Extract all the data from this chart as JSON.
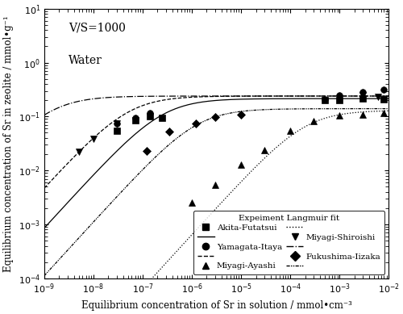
{
  "annotation_line1": "V/S=1000",
  "annotation_line2": "Water",
  "xlabel": "Equilibrium concentration of Sr in solution / mmol•cm⁻³",
  "ylabel": "Equilibrium concentration of Sr in zeolite / mmol•g⁻¹",
  "xlim": [
    1e-09,
    0.01
  ],
  "ylim": [
    0.0001,
    10
  ],
  "langmuir_params": [
    {
      "name": "Akita-Futatsui",
      "marker": "s",
      "ls": "-",
      "qmax": 0.215,
      "K": 4000000.0
    },
    {
      "name": "Yamagata-Itaya",
      "marker": "o",
      "ls": "--",
      "qmax": 0.24,
      "K": 20000000.0
    },
    {
      "name": "Miyagi-Ayashi",
      "marker": "^",
      "ls": ":",
      "qmax": 0.13,
      "K": 5000.0
    },
    {
      "name": "Miyagi-Shiroishi",
      "marker": "v",
      "ls": "-.",
      "qmax": 0.24,
      "K": 800000000.0
    },
    {
      "name": "Fukushima-Iizaka",
      "marker": "D",
      "ls": "dashdotdot",
      "qmax": 0.14,
      "K": 800000.0
    }
  ],
  "exp_data": [
    {
      "x": [
        3e-08,
        7e-08,
        1.4e-07,
        2.5e-07,
        0.0005,
        0.001,
        0.003,
        0.008
      ],
      "y": [
        0.055,
        0.085,
        0.1,
        0.095,
        0.2,
        0.2,
        0.22,
        0.21
      ]
    },
    {
      "x": [
        3e-08,
        7e-08,
        1.4e-07,
        0.0005,
        0.001,
        0.003,
        0.008
      ],
      "y": [
        0.075,
        0.095,
        0.115,
        0.21,
        0.245,
        0.285,
        0.32
      ]
    },
    {
      "x": [
        1e-06,
        3e-06,
        1e-05,
        3e-05,
        0.0001,
        0.0003,
        0.001,
        0.003,
        0.008
      ],
      "y": [
        0.0025,
        0.0055,
        0.013,
        0.024,
        0.055,
        0.082,
        0.105,
        0.11,
        0.115
      ]
    },
    {
      "x": [
        5e-09,
        1e-08,
        3e-08,
        0.001,
        0.003,
        0.006
      ],
      "y": [
        0.022,
        0.038,
        0.075,
        0.22,
        0.245,
        0.23
      ]
    },
    {
      "x": [
        1.2e-07,
        3.5e-07,
        1.2e-06,
        3e-06,
        1e-05
      ],
      "y": [
        0.023,
        0.052,
        0.075,
        0.098,
        0.11
      ]
    }
  ],
  "legend_title": "Expeiment Langmuir fit",
  "background_color": "#ffffff",
  "color": "black"
}
